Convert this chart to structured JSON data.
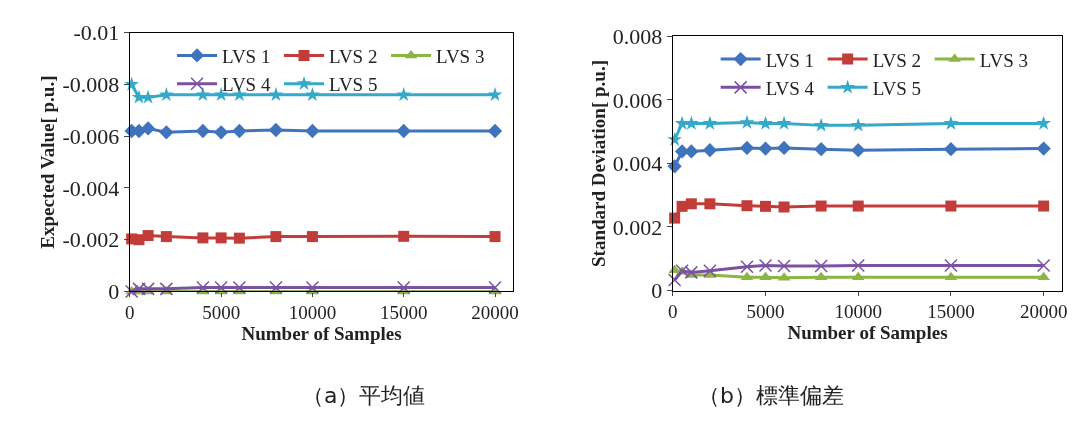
{
  "chart_data": [
    {
      "type": "line",
      "xlabel": "Number of Samples",
      "ylabel": "Expected Value[ p.u.]",
      "xlim": [
        0,
        21000
      ],
      "xticks": [
        0,
        5000,
        10000,
        15000,
        20000
      ],
      "ylim": [
        0,
        -0.01
      ],
      "yticks": [
        0,
        -0.002,
        -0.004,
        -0.006,
        -0.008,
        -0.01
      ],
      "legend": "top",
      "annotations": [
        "（a）平均値"
      ],
      "x": [
        100,
        500,
        1000,
        2000,
        4000,
        5000,
        6000,
        8000,
        10000,
        15000,
        20000
      ],
      "series": [
        {
          "name": "LVS 1",
          "color": "#3f74bd",
          "marker": "diamond",
          "values": [
            -0.0062,
            -0.0062,
            -0.0063,
            -0.00615,
            -0.0062,
            -0.00615,
            -0.0062,
            -0.00624,
            -0.0062,
            -0.0062,
            -0.0062
          ]
        },
        {
          "name": "LVS 2",
          "color": "#c23d3a",
          "marker": "square",
          "values": [
            -0.00203,
            -0.002,
            -0.00216,
            -0.00212,
            -0.00207,
            -0.00207,
            -0.00206,
            -0.00212,
            -0.00212,
            -0.00213,
            -0.00212
          ]
        },
        {
          "name": "LVS 3",
          "color": "#8db546",
          "marker": "triangle",
          "values": [
            0,
            0,
            0,
            0,
            0,
            0,
            0,
            0,
            0,
            0,
            0
          ]
        },
        {
          "name": "LVS 4",
          "color": "#7b52a3",
          "marker": "cross",
          "values": [
            0,
            -0.0001,
            -0.0001,
            -0.0001,
            -0.00015,
            -0.00015,
            -0.00015,
            -0.00015,
            -0.00015,
            -0.00015,
            -0.00015
          ]
        },
        {
          "name": "LVS 5",
          "color": "#35a9c8",
          "marker": "star",
          "values": [
            -0.008,
            -0.0075,
            -0.0075,
            -0.0076,
            -0.0076,
            -0.0076,
            -0.0076,
            -0.0076,
            -0.0076,
            -0.0076,
            -0.0076
          ]
        }
      ]
    },
    {
      "type": "line",
      "xlabel": "Number of Samples",
      "ylabel": "Standard Deviation[ p.u.]",
      "xlim": [
        0,
        21000
      ],
      "xticks": [
        0,
        5000,
        10000,
        15000,
        20000
      ],
      "ylim": [
        0,
        0.008
      ],
      "yticks": [
        0,
        0.002,
        0.004,
        0.006,
        0.008
      ],
      "legend": "top",
      "annotations": [
        "（b）標準偏差"
      ],
      "x": [
        100,
        500,
        1000,
        2000,
        4000,
        5000,
        6000,
        8000,
        10000,
        15000,
        20000
      ],
      "series": [
        {
          "name": "LVS 1",
          "color": "#3f74bd",
          "marker": "diamond",
          "values": [
            0.00391,
            0.00438,
            0.00438,
            0.00442,
            0.00449,
            0.00447,
            0.00449,
            0.00445,
            0.00442,
            0.00445,
            0.00447
          ]
        },
        {
          "name": "LVS 2",
          "color": "#c23d3a",
          "marker": "square",
          "values": [
            0.00228,
            0.00265,
            0.00273,
            0.00273,
            0.00267,
            0.00265,
            0.00263,
            0.00266,
            0.00266,
            0.00266,
            0.00266
          ]
        },
        {
          "name": "LVS 3",
          "color": "#8db546",
          "marker": "triangle",
          "values": [
            0.00064,
            0.00059,
            0.00049,
            0.00049,
            0.00042,
            0.00042,
            0.0004,
            0.00042,
            0.00042,
            0.00042,
            0.00042
          ]
        },
        {
          "name": "LVS 4",
          "color": "#7b52a3",
          "marker": "cross",
          "values": [
            0.00033,
            0.00062,
            0.00057,
            0.00062,
            0.00075,
            0.00079,
            0.00077,
            0.00077,
            0.00079,
            0.00079,
            0.00079
          ]
        },
        {
          "name": "LVS 5",
          "color": "#35a9c8",
          "marker": "star",
          "values": [
            0.00475,
            0.00526,
            0.00526,
            0.00526,
            0.00529,
            0.00526,
            0.00526,
            0.0052,
            0.0052,
            0.00526,
            0.00526
          ]
        }
      ]
    }
  ]
}
